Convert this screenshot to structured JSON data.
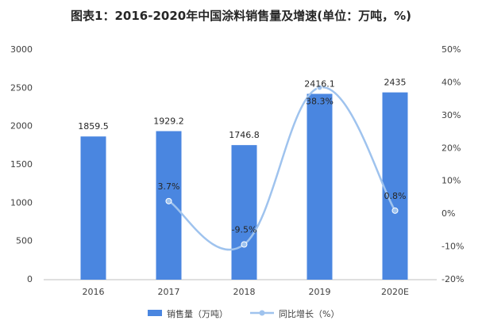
{
  "title": "图表1：2016-2020年中国涂料销售量及增速(单位：万吨，%)",
  "chart_data": {
    "type": "bar",
    "categories": [
      "2016",
      "2017",
      "2018",
      "2019",
      "2020E"
    ],
    "series": [
      {
        "name": "销售量（万吨）",
        "type": "bar",
        "axis": "left",
        "values": [
          1859.5,
          1929.2,
          1746.8,
          2416.1,
          2435
        ],
        "labels": [
          "1859.5",
          "1929.2",
          "1746.8",
          "2416.1",
          "2435"
        ],
        "color": "#4a86e0"
      },
      {
        "name": "同比增长（%）",
        "type": "line",
        "axis": "right",
        "values": [
          null,
          3.7,
          -9.5,
          38.3,
          0.8
        ],
        "labels": [
          "",
          "3.7%",
          "-9.5%",
          "38.3%",
          "0.8%"
        ],
        "color": "#9fc3ee"
      }
    ],
    "y_left": {
      "ylim": [
        0,
        3000
      ],
      "ticks": [
        "0",
        "500",
        "1000",
        "1500",
        "2000",
        "2500",
        "3000"
      ]
    },
    "y_right": {
      "ylim": [
        -20,
        50
      ],
      "ticks": [
        "-20%",
        "-10%",
        "0%",
        "10%",
        "20%",
        "30%",
        "40%",
        "50%"
      ]
    },
    "grid": false,
    "legend_position": "bottom-center"
  }
}
